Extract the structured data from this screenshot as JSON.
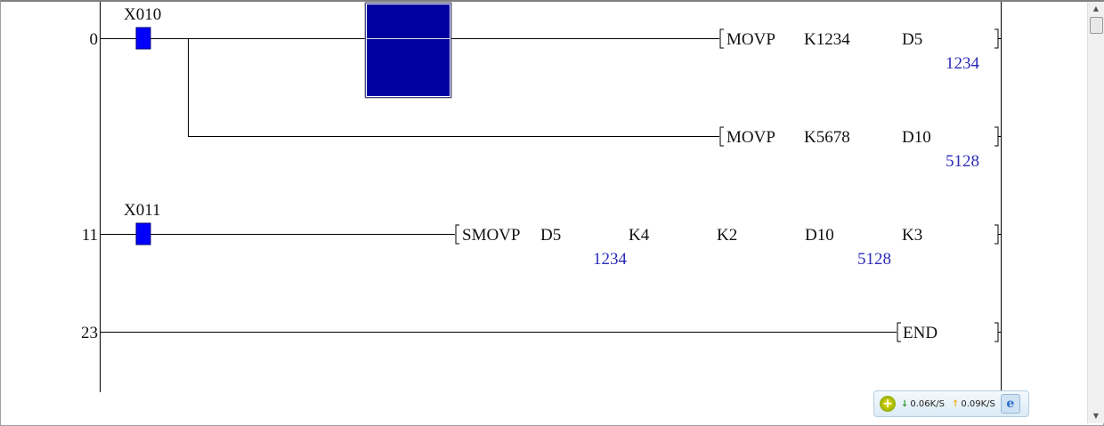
{
  "ladder": {
    "rungs": [
      {
        "step": "0",
        "contact": "X010",
        "instructions": [
          {
            "op": "MOVP",
            "operands": [
              "K1234",
              "D5"
            ],
            "monitor": "1234"
          },
          {
            "op": "MOVP",
            "operands": [
              "K5678",
              "D10"
            ],
            "monitor": "5128"
          }
        ]
      },
      {
        "step": "11",
        "contact": "X011",
        "instructions": [
          {
            "op": "SMOVP",
            "operands": [
              "D5",
              "K4",
              "K2",
              "D10",
              "K3"
            ],
            "monitors": [
              "1234",
              "5128"
            ]
          }
        ]
      },
      {
        "step": "23",
        "instructions": [
          {
            "op": "END"
          }
        ]
      }
    ],
    "colors": {
      "contact_on": "#0000ff",
      "cursor": "#0000a0",
      "monitor_value": "#2a2ab8"
    }
  },
  "netbar": {
    "down": "0.06K/S",
    "up": "0.09K/S",
    "icons": [
      "accelerator-icon",
      "download-arrow-icon",
      "upload-arrow-icon",
      "ie-icon"
    ]
  },
  "scrollbar": {
    "up": "▲",
    "down": "▼"
  }
}
